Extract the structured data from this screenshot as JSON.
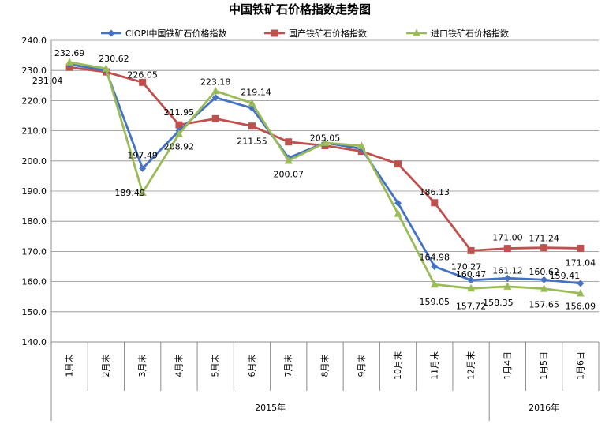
{
  "chart_data": {
    "type": "line",
    "title": "中国铁矿石价格指数走势图",
    "categories": [
      "1月末",
      "2月末",
      "3月末",
      "4月末",
      "5月末",
      "6月末",
      "7月末",
      "8月末",
      "9月末",
      "10月末",
      "11月末",
      "12月末",
      "1月4日",
      "1月5日",
      "1月6日"
    ],
    "year_groups": [
      {
        "label": "2015年",
        "count": 12
      },
      {
        "label": "2016年",
        "count": 3
      }
    ],
    "ylim": [
      140,
      240
    ],
    "yticks": [
      "140.0",
      "150.0",
      "160.0",
      "170.0",
      "180.0",
      "190.0",
      "200.0",
      "210.0",
      "220.0",
      "230.0",
      "240.0"
    ],
    "legend_position": "top",
    "series": [
      {
        "name": "CIOPI中国铁矿石价格指数",
        "color": "#4472C4",
        "marker": "diamond",
        "values": [
          232.0,
          230.0,
          197.49,
          210.0,
          221.0,
          217.5,
          201.0,
          206.0,
          204.0,
          186.0,
          164.98,
          160.47,
          161.12,
          160.62,
          159.41
        ],
        "labels": [
          "",
          "",
          "197.49",
          "",
          "",
          "",
          "",
          "",
          "",
          "",
          "164.98",
          "160.47",
          "161.12",
          "160.62",
          "159.41"
        ]
      },
      {
        "name": "国产铁矿石价格指数",
        "color": "#C0504D",
        "marker": "square",
        "values": [
          231.04,
          229.5,
          226.05,
          211.95,
          214.0,
          211.55,
          206.3,
          205.05,
          203.2,
          199.0,
          186.13,
          170.27,
          171.0,
          171.24,
          171.04
        ],
        "labels": [
          "231.04",
          "",
          "226.05",
          "211.95",
          "",
          "211.55",
          "",
          "205.05",
          "",
          "",
          "186.13",
          "170.27",
          "171.00",
          "171.24",
          "171.04"
        ]
      },
      {
        "name": "进口铁矿石价格指数",
        "color": "#9BBB59",
        "marker": "triangle",
        "values": [
          232.69,
          230.62,
          189.49,
          208.92,
          223.18,
          219.14,
          200.07,
          206.0,
          205.0,
          182.5,
          159.05,
          157.72,
          158.35,
          157.65,
          156.09
        ],
        "labels": [
          "232.69",
          "230.62",
          "189.49",
          "208.92",
          "223.18",
          "219.14",
          "200.07",
          "",
          "",
          "",
          "159.05",
          "157.72",
          "158.35",
          "157.65",
          "156.09"
        ]
      }
    ]
  }
}
